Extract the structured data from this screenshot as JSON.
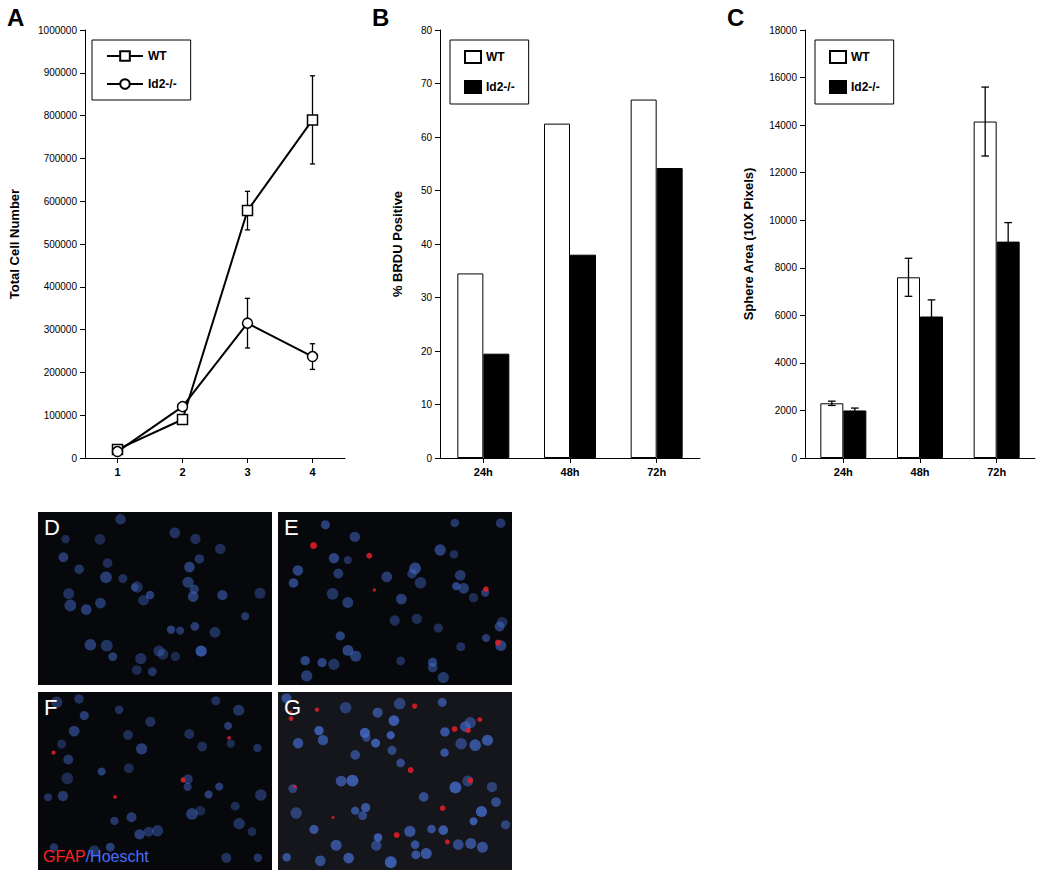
{
  "chart_data": [
    {
      "type": "line",
      "title": "A",
      "y_label": "Total Cell Number",
      "categories": [
        "1",
        "2",
        "3",
        "4"
      ],
      "series": [
        {
          "name": "WT",
          "color": "#000000",
          "marker": "square",
          "values": [
            20000,
            90000,
            578000,
            790000
          ],
          "errors": [
            6000,
            9000,
            45000,
            103000
          ]
        },
        {
          "name": "Id2-/-",
          "color": "#000000",
          "marker": "circle",
          "values": [
            15000,
            120000,
            315000,
            237000
          ],
          "errors": [
            4000,
            6000,
            58000,
            30000
          ]
        }
      ],
      "ylim": [
        0,
        1000000
      ],
      "yticks": [
        0,
        100000,
        200000,
        300000,
        400000,
        500000,
        600000,
        700000,
        800000,
        900000,
        1000000
      ],
      "grid": false,
      "legend": "top-left"
    },
    {
      "type": "bar",
      "title": "B",
      "y_label": "% BRDU Positive",
      "categories": [
        "24h",
        "48h",
        "72h"
      ],
      "series": [
        {
          "name": "WT",
          "color": "#ffffff",
          "values": [
            34.5,
            62.5,
            67
          ]
        },
        {
          "name": "Id2-/-",
          "color": "#000000",
          "values": [
            19.5,
            38,
            54.2
          ]
        }
      ],
      "ylim": [
        0,
        80
      ],
      "yticks": [
        0,
        10,
        20,
        30,
        40,
        50,
        60,
        70,
        80
      ],
      "grid": false,
      "legend": "top-left"
    },
    {
      "type": "bar",
      "title": "C",
      "y_label": "Sphere Area (10X Pixels)",
      "categories": [
        "24h",
        "48h",
        "72h"
      ],
      "series": [
        {
          "name": "WT",
          "color": "#ffffff",
          "values": [
            2300,
            7600,
            14150
          ],
          "errors": [
            90,
            800,
            1450
          ]
        },
        {
          "name": "Id2-/-",
          "color": "#000000",
          "values": [
            2000,
            5950,
            9100
          ],
          "errors": [
            100,
            700,
            800
          ]
        }
      ],
      "ylim": [
        0,
        18000
      ],
      "yticks": [
        0,
        2000,
        4000,
        6000,
        8000,
        10000,
        12000,
        14000,
        16000,
        18000
      ],
      "grid": false,
      "legend": "top-left"
    }
  ],
  "images": [
    {
      "label": "D"
    },
    {
      "label": "E"
    },
    {
      "label": "F",
      "caption": [
        {
          "text": "GFAP",
          "color": "#ff2020"
        },
        {
          "text": "/Hoescht",
          "color": "#4a6cff"
        }
      ]
    },
    {
      "label": "G"
    }
  ]
}
